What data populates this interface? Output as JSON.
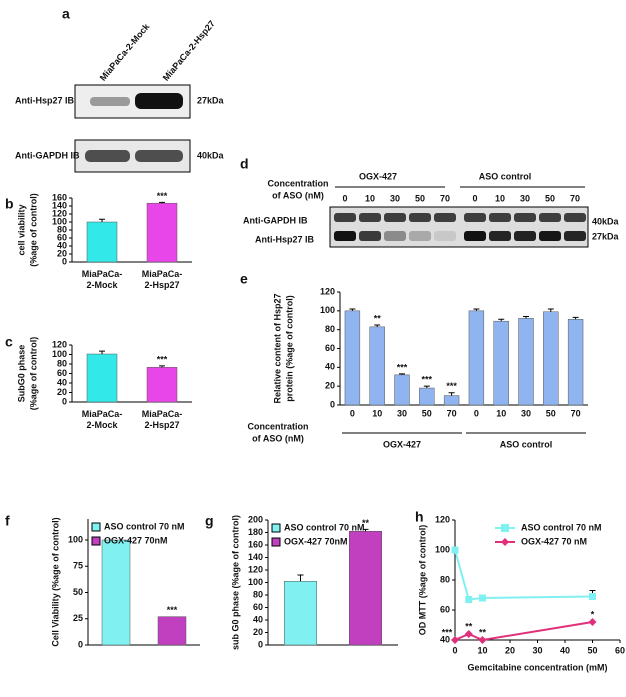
{
  "panel_labels": [
    "a",
    "b",
    "c",
    "d",
    "e",
    "f",
    "g",
    "h"
  ],
  "blot_a": {
    "lanes": [
      "MiaPaCa-2-Mock",
      "MiaPaCa-2-Hsp27"
    ],
    "rows": [
      {
        "label": "Anti-Hsp27 IB",
        "size": "27kDa"
      },
      {
        "label": "Anti-GAPDH IB",
        "size": "40kDa"
      }
    ]
  },
  "blot_d": {
    "axis_label": [
      "Concentration",
      "of ASO (nM)"
    ],
    "groups": [
      "OGX-427",
      "ASO control"
    ],
    "lanes": [
      "0",
      "10",
      "30",
      "50",
      "70",
      "0",
      "10",
      "30",
      "50",
      "70"
    ],
    "rows": [
      {
        "label": "Anti-GAPDH IB",
        "size": "40kDa"
      },
      {
        "label": "Anti-Hsp27 IB",
        "size": "27kDa"
      }
    ]
  },
  "chart_data": [
    {
      "type": "bar",
      "categories": [
        "MiaPaCa-2-Mock",
        "MiaPaCa-2-Hsp27"
      ],
      "values": [
        100,
        147
      ],
      "errors": [
        7,
        2
      ],
      "annotations": [
        null,
        "***"
      ],
      "colors": [
        "#33e8e8",
        "#e846e8"
      ],
      "ylim": [
        0,
        160
      ],
      "yticks": [
        0,
        20,
        40,
        60,
        80,
        100,
        120,
        140,
        160
      ],
      "y_label": [
        "cell viability",
        "(%age of control)"
      ]
    },
    {
      "type": "bar",
      "categories": [
        "MiaPaCa-2-Mock",
        "MiaPaCa-2-Hsp27"
      ],
      "values": [
        101,
        73
      ],
      "errors": [
        6,
        3
      ],
      "annotations": [
        null,
        "***"
      ],
      "colors": [
        "#33e8e8",
        "#e846e8"
      ],
      "ylim": [
        0,
        120
      ],
      "yticks": [
        0,
        20,
        40,
        60,
        80,
        100,
        120
      ],
      "y_label": [
        "SubG0 phase",
        "(%age of control)"
      ]
    },
    {
      "type": "bar",
      "categories": [
        "0",
        "10",
        "30",
        "50",
        "70",
        "0",
        "10",
        "30",
        "50",
        "70"
      ],
      "values": [
        100,
        83,
        32,
        18,
        10,
        100,
        89,
        92,
        99,
        91
      ],
      "errors": [
        2,
        2,
        1,
        2,
        3,
        2,
        2,
        2,
        3,
        2
      ],
      "annotations": [
        null,
        "**",
        "***",
        "***",
        "***",
        null,
        null,
        null,
        null,
        null
      ],
      "color": "#8fb4f0",
      "ylim": [
        0,
        120
      ],
      "yticks": [
        0,
        20,
        40,
        60,
        80,
        100,
        120
      ],
      "y_label": [
        "Relative content of Hsp27",
        "protein (%age of control)"
      ],
      "x_label": [
        "Concentration",
        "of ASO (nM)"
      ],
      "groups": [
        "OGX-427",
        "ASO control"
      ]
    },
    {
      "type": "bar",
      "series": [
        {
          "name": "ASO control 70 nM",
          "color": "#80f0f0",
          "values": [
            100
          ]
        },
        {
          "name": "OGX-427 70nM",
          "color": "#c040c0",
          "values": [
            27
          ]
        }
      ],
      "annotations": [
        null,
        "***"
      ],
      "ylim": [
        0,
        120
      ],
      "yticks": [
        0,
        25,
        50,
        75,
        100
      ],
      "y_label": "Cell Viability (%age of control)",
      "legend": "upper left"
    },
    {
      "type": "bar",
      "series": [
        {
          "name": "ASO control 70 nM",
          "color": "#80f0f0",
          "values": [
            102
          ],
          "errors": [
            10
          ]
        },
        {
          "name": "OGX-427 70nM",
          "color": "#c040c0",
          "values": [
            182
          ],
          "errors": [
            3
          ]
        }
      ],
      "annotations": [
        null,
        "**"
      ],
      "ylim": [
        0,
        200
      ],
      "yticks": [
        0,
        20,
        40,
        60,
        80,
        100,
        120,
        140,
        160,
        180,
        200
      ],
      "y_label": "sub G0 phase (%age of control)",
      "legend": "upper left"
    },
    {
      "type": "line",
      "x": [
        0,
        5,
        10,
        50
      ],
      "series": [
        {
          "name": "ASO control 70 nM",
          "color": "#80f0f0",
          "marker": "square",
          "values": [
            100,
            67,
            68,
            69
          ],
          "errors": [
            0,
            1,
            1,
            4
          ],
          "annotations": [
            null,
            null,
            null,
            null
          ]
        },
        {
          "name": "OGX-427 70 nM",
          "color": "#e0307a",
          "marker": "diamond",
          "values": [
            40,
            44,
            40,
            52
          ],
          "errors": [
            0,
            0,
            0,
            0
          ],
          "annotations": [
            "***",
            "**",
            "**",
            "*"
          ]
        }
      ],
      "xlim": [
        0,
        60
      ],
      "xticks": [
        0,
        10,
        20,
        30,
        40,
        50,
        60
      ],
      "ylim": [
        40,
        120
      ],
      "yticks": [
        40,
        60,
        80,
        100,
        120
      ],
      "x_label": "Gemcitabine concentration (mM)",
      "y_label": "OD MTT (%age of control)",
      "legend": "upper right"
    }
  ]
}
